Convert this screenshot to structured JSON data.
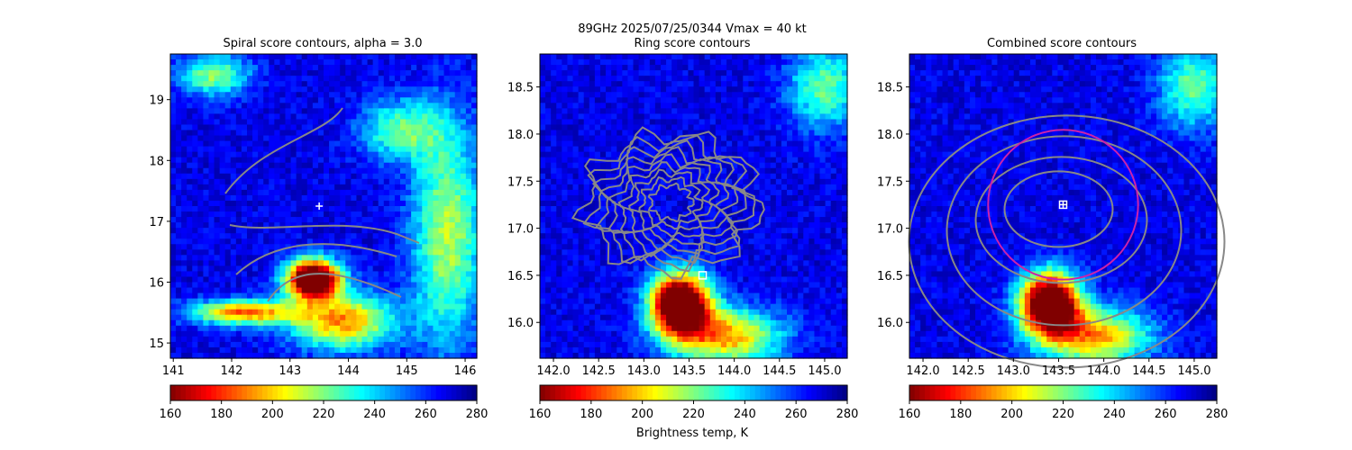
{
  "figure": {
    "suptitle_line1": "89GHz  2025/07/25/0344    Vmax = 40 kt",
    "colorbar_label": "Brightness temp, K"
  },
  "colorbar": {
    "cmap": "jet_r",
    "range": [
      160,
      280
    ],
    "ticks": [
      "160",
      "180",
      "200",
      "220",
      "240",
      "260",
      "280"
    ]
  },
  "chart_data": [
    {
      "type": "heatmap",
      "title": "Spiral score contours, alpha =  3.0",
      "xlim": [
        140.95,
        146.2
      ],
      "ylim": [
        14.75,
        19.75
      ],
      "xticks": [
        "141",
        "142",
        "143",
        "144",
        "145",
        "146"
      ],
      "yticks": [
        "15",
        "16",
        "17",
        "18",
        "19"
      ],
      "marker": {
        "symbol": "plus",
        "color": "#ffffff",
        "x": 143.5,
        "y": 17.25
      },
      "overlay_contours": {
        "color": "#888888"
      },
      "features": [
        {
          "name": "convective core",
          "x": 143.4,
          "y": 16.05,
          "sx": 0.45,
          "sy": 0.32,
          "depth": 150
        },
        {
          "name": "southern band",
          "x": 143.9,
          "y": 15.35,
          "sx": 0.9,
          "sy": 0.45,
          "depth": 75
        },
        {
          "name": "southwest band",
          "x": 142.2,
          "y": 15.5,
          "sx": 0.9,
          "sy": 0.2,
          "depth": 80
        },
        {
          "name": "eastern band",
          "x": 145.7,
          "y": 16.8,
          "sx": 0.6,
          "sy": 1.8,
          "depth": 55
        },
        {
          "name": "northeast band",
          "x": 144.9,
          "y": 18.5,
          "sx": 0.7,
          "sy": 0.5,
          "depth": 45
        },
        {
          "name": "northwest cells",
          "x": 141.7,
          "y": 19.4,
          "sx": 0.6,
          "sy": 0.35,
          "depth": 50
        }
      ]
    },
    {
      "type": "heatmap",
      "title": "Ring score contours",
      "xlim": [
        141.85,
        145.25
      ],
      "ylim": [
        15.62,
        18.85
      ],
      "xticks": [
        "142.0",
        "142.5",
        "143.0",
        "143.5",
        "144.0",
        "144.5",
        "145.0"
      ],
      "yticks": [
        "16.0",
        "16.5",
        "17.0",
        "17.5",
        "18.0",
        "18.5"
      ],
      "marker": {
        "symbol": "square",
        "color": "#ffffff",
        "x": 143.65,
        "y": 16.5
      },
      "overlay_contours": {
        "color": "#888888"
      },
      "features": [
        {
          "name": "convective core",
          "x": 143.4,
          "y": 16.2,
          "sx": 0.32,
          "sy": 0.32,
          "depth": 150
        },
        {
          "name": "southern band",
          "x": 143.9,
          "y": 15.85,
          "sx": 0.6,
          "sy": 0.3,
          "depth": 75
        },
        {
          "name": "northeast cells",
          "x": 145.0,
          "y": 18.5,
          "sx": 0.4,
          "sy": 0.45,
          "depth": 45
        }
      ]
    },
    {
      "type": "heatmap",
      "title": "Combined score contours",
      "xlim": [
        141.85,
        145.25
      ],
      "ylim": [
        15.62,
        18.85
      ],
      "xticks": [
        "142.0",
        "142.5",
        "143.0",
        "143.5",
        "144.0",
        "144.5",
        "145.0"
      ],
      "yticks": [
        "16.0",
        "16.5",
        "17.0",
        "17.5",
        "18.0",
        "18.5"
      ],
      "marker": {
        "symbol": "boxed-plus",
        "color": "#ffffff",
        "x": 143.55,
        "y": 17.25
      },
      "ring": {
        "x": 143.55,
        "y": 17.25,
        "radius": 0.83,
        "color": "#cc22aa"
      },
      "overlay_contours": {
        "color": "#888888"
      },
      "features": [
        {
          "name": "convective core",
          "x": 143.4,
          "y": 16.2,
          "sx": 0.32,
          "sy": 0.32,
          "depth": 150
        },
        {
          "name": "southern band",
          "x": 143.9,
          "y": 15.85,
          "sx": 0.6,
          "sy": 0.3,
          "depth": 75
        },
        {
          "name": "northeast cells",
          "x": 145.0,
          "y": 18.5,
          "sx": 0.4,
          "sy": 0.45,
          "depth": 45
        }
      ]
    }
  ]
}
